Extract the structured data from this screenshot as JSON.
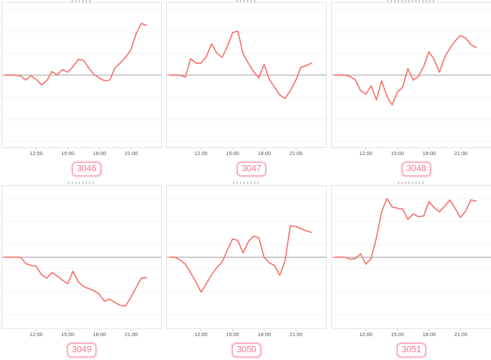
{
  "style": {
    "line_color": "#f4706b",
    "baseline_color": "#9a9a9a",
    "gridline_color": "#f3f3f3",
    "panel_border_color": "#e2e2e2",
    "axis_label_color": "#555555",
    "badge_text_color": "#f2798f",
    "badge_border_color": "#f591a7",
    "badge_ring_color": "#fbdbe3"
  },
  "x_axis": {
    "ticks": [
      "12:00",
      "15:00",
      "18:00",
      "21:00"
    ]
  },
  "chart_data": [
    {
      "type": "line",
      "id": "3046",
      "title": "",
      "x_start_hour": 9,
      "x_step_hours": 0.5,
      "x_range_hours": [
        9,
        22.5
      ],
      "x_tick_labels": [
        "12:00",
        "15:00",
        "18:00",
        "21:00"
      ],
      "baseline": 0,
      "ylim": [
        -1,
        1
      ],
      "grid": "horizontal-only",
      "legend": "none",
      "values": [
        0,
        0,
        0,
        -0.01,
        -0.07,
        -0.01,
        -0.06,
        -0.14,
        -0.08,
        0.05,
        0.0,
        0.08,
        0.04,
        0.12,
        0.22,
        0.21,
        0.1,
        0.01,
        -0.04,
        -0.08,
        -0.07,
        0.1,
        0.17,
        0.25,
        0.35,
        0.58,
        0.73,
        0.7
      ]
    },
    {
      "type": "line",
      "id": "3047",
      "title": "",
      "x_start_hour": 9,
      "x_step_hours": 0.5,
      "x_range_hours": [
        9,
        22.5
      ],
      "x_tick_labels": [
        "12:00",
        "15:00",
        "18:00",
        "21:00"
      ],
      "baseline": 0,
      "ylim": [
        -1,
        1
      ],
      "grid": "horizontal-only",
      "legend": "none",
      "values": [
        0,
        0,
        0,
        -0.03,
        0.23,
        0.17,
        0.17,
        0.26,
        0.44,
        0.31,
        0.25,
        0.4,
        0.6,
        0.62,
        0.3,
        0.17,
        0.05,
        -0.04,
        0.15,
        -0.06,
        -0.17,
        -0.28,
        -0.33,
        -0.22,
        -0.08,
        0.11,
        0.13,
        0.17
      ]
    },
    {
      "type": "line",
      "id": "3048",
      "title": "",
      "x_start_hour": 9,
      "x_step_hours": 0.5,
      "x_range_hours": [
        9,
        22.5
      ],
      "x_tick_labels": [
        "12:00",
        "15:00",
        "18:00",
        "21:00"
      ],
      "baseline": 0,
      "ylim": [
        -1,
        1
      ],
      "grid": "horizontal-only",
      "legend": "none",
      "values": [
        0,
        0,
        0,
        -0.02,
        -0.07,
        -0.22,
        -0.27,
        -0.15,
        -0.35,
        -0.08,
        -0.3,
        -0.42,
        -0.24,
        -0.17,
        0.09,
        -0.07,
        -0.02,
        0.12,
        0.33,
        0.22,
        0.04,
        0.25,
        0.38,
        0.48,
        0.56,
        0.52,
        0.43,
        0.39
      ]
    },
    {
      "type": "line",
      "id": "3049",
      "title": "",
      "x_start_hour": 9,
      "x_step_hours": 0.5,
      "x_range_hours": [
        9,
        22.5
      ],
      "x_tick_labels": [
        "12:00",
        "15:00",
        "18:00",
        "21:00"
      ],
      "baseline": 0,
      "ylim": [
        -1,
        1
      ],
      "grid": "horizontal-only",
      "legend": "none",
      "values": [
        0,
        0,
        0,
        0,
        -0.09,
        -0.12,
        -0.13,
        -0.25,
        -0.3,
        -0.22,
        -0.27,
        -0.33,
        -0.38,
        -0.2,
        -0.35,
        -0.42,
        -0.45,
        -0.48,
        -0.53,
        -0.63,
        -0.6,
        -0.65,
        -0.69,
        -0.7,
        -0.58,
        -0.44,
        -0.3,
        -0.29
      ]
    },
    {
      "type": "line",
      "id": "3050",
      "title": "",
      "x_start_hour": 9,
      "x_step_hours": 0.5,
      "x_range_hours": [
        9,
        22.5
      ],
      "x_tick_labels": [
        "12:00",
        "15:00",
        "18:00",
        "21:00"
      ],
      "baseline": 0,
      "ylim": [
        -1,
        1
      ],
      "grid": "horizontal-only",
      "legend": "none",
      "values": [
        0,
        0,
        -0.04,
        -0.1,
        -0.22,
        -0.35,
        -0.5,
        -0.38,
        -0.25,
        -0.15,
        -0.07,
        0.1,
        0.26,
        0.24,
        0.06,
        0.22,
        0.3,
        0.28,
        0.0,
        -0.08,
        -0.12,
        -0.26,
        -0.05,
        0.45,
        0.44,
        0.41,
        0.38,
        0.355
      ]
    },
    {
      "type": "line",
      "id": "3051",
      "title": "",
      "x_start_hour": 9,
      "x_step_hours": 0.5,
      "x_range_hours": [
        9,
        22.5
      ],
      "x_tick_labels": [
        "12:00",
        "15:00",
        "18:00",
        "21:00"
      ],
      "baseline": 0,
      "ylim": [
        -1,
        1
      ],
      "grid": "horizontal-only",
      "legend": "none",
      "values": [
        0,
        0,
        0,
        -0.03,
        -0.02,
        0.05,
        -0.1,
        -0.02,
        0.28,
        0.65,
        0.84,
        0.72,
        0.7,
        0.69,
        0.54,
        0.62,
        0.58,
        0.59,
        0.795,
        0.71,
        0.65,
        0.73,
        0.82,
        0.7,
        0.57,
        0.66,
        0.82,
        0.805
      ]
    }
  ]
}
